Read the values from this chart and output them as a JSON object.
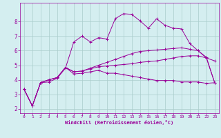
{
  "xlabel": "Windchill (Refroidissement éolien,°C)",
  "background_color": "#d4eef0",
  "grid_color": "#aacccc",
  "line_color": "#990099",
  "xlim": [
    -0.5,
    23.5
  ],
  "ylim": [
    1.7,
    9.3
  ],
  "yticks": [
    2,
    3,
    4,
    5,
    6,
    7,
    8
  ],
  "xticks": [
    0,
    1,
    2,
    3,
    4,
    5,
    6,
    7,
    8,
    9,
    10,
    11,
    12,
    13,
    14,
    15,
    16,
    17,
    18,
    19,
    20,
    21,
    22,
    23
  ],
  "series": [
    [
      3.35,
      2.2,
      3.8,
      3.85,
      4.1,
      4.8,
      6.6,
      7.0,
      6.6,
      6.9,
      6.8,
      8.2,
      8.55,
      8.5,
      8.05,
      7.55,
      8.2,
      7.75,
      7.55,
      7.5,
      6.5,
      6.0,
      5.5,
      5.3
    ],
    [
      3.35,
      2.2,
      3.8,
      4.0,
      4.15,
      4.85,
      4.4,
      4.45,
      4.55,
      4.65,
      4.45,
      4.45,
      4.35,
      4.25,
      4.15,
      4.05,
      3.95,
      3.95,
      3.95,
      3.85,
      3.85,
      3.85,
      3.75,
      3.8
    ],
    [
      3.35,
      2.2,
      3.8,
      4.0,
      4.15,
      4.85,
      4.55,
      4.6,
      4.75,
      4.9,
      4.95,
      5.0,
      5.05,
      5.1,
      5.2,
      5.25,
      5.3,
      5.4,
      5.5,
      5.6,
      5.65,
      5.65,
      5.5,
      3.8
    ],
    [
      3.35,
      2.2,
      3.8,
      4.0,
      4.15,
      4.85,
      4.55,
      4.6,
      4.8,
      5.0,
      5.2,
      5.4,
      5.6,
      5.8,
      5.95,
      6.0,
      6.05,
      6.1,
      6.15,
      6.2,
      6.1,
      6.0,
      5.55,
      3.8
    ]
  ]
}
